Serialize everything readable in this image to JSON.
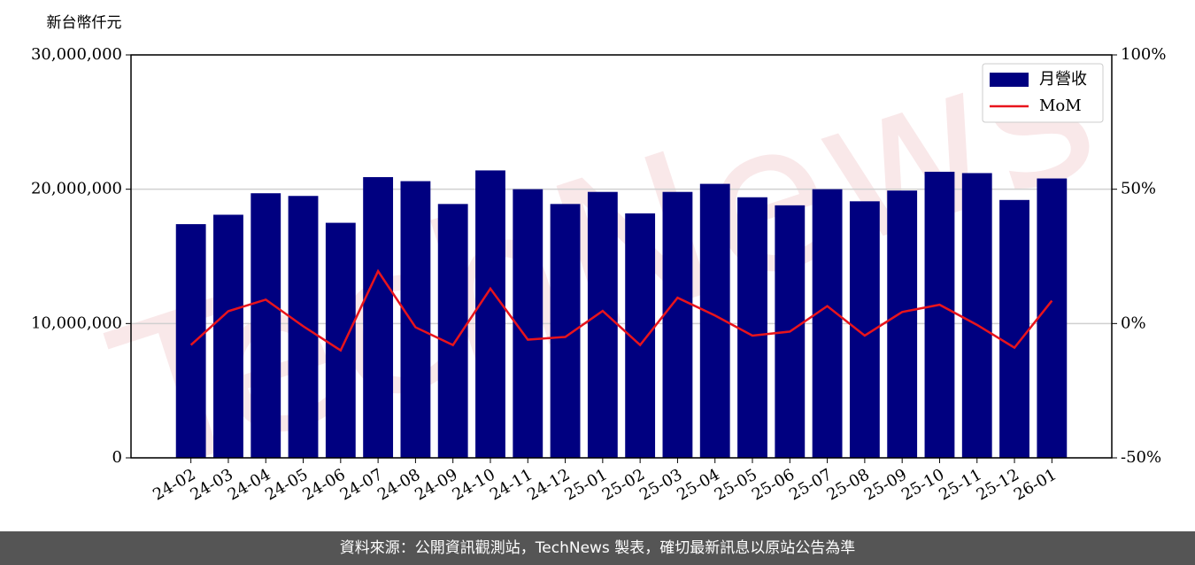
{
  "chart_data": {
    "type": "bar",
    "y_label": "新台幣仟元",
    "watermark": "TechNews",
    "categories": [
      "24-02",
      "24-03",
      "24-04",
      "24-05",
      "24-06",
      "24-07",
      "24-08",
      "24-09",
      "24-10",
      "24-11",
      "24-12",
      "25-01",
      "25-02",
      "25-03",
      "25-04",
      "25-05",
      "25-06",
      "25-07",
      "25-08",
      "25-09",
      "25-10",
      "25-11",
      "25-12",
      "26-01"
    ],
    "series": [
      {
        "name": "月營收",
        "type": "bar",
        "color": "#000080",
        "values": [
          17400000,
          18100000,
          19700000,
          19500000,
          17500000,
          20900000,
          20600000,
          18900000,
          21400000,
          20000000,
          18900000,
          19800000,
          18200000,
          19800000,
          20400000,
          19400000,
          18800000,
          20000000,
          19100000,
          19900000,
          21300000,
          21200000,
          19200000,
          20800000
        ]
      },
      {
        "name": "MoM",
        "type": "line",
        "axis": "y2",
        "color": "#e8141c",
        "values": [
          -8,
          4.6,
          8.9,
          -1,
          -10,
          19.5,
          -1.4,
          -8,
          13,
          -6,
          -5,
          4.7,
          -8,
          9.6,
          3,
          -4.5,
          -3,
          6.5,
          -4.5,
          4.3,
          7,
          -0.5,
          -9,
          8.5
        ]
      }
    ],
    "ylim": [
      0,
      30000000
    ],
    "yticks": [
      {
        "value": 0,
        "label": "0"
      },
      {
        "value": 10000000,
        "label": "10,000,000"
      },
      {
        "value": 20000000,
        "label": "20,000,000"
      },
      {
        "value": 30000000,
        "label": "30,000,000"
      }
    ],
    "y2lim": [
      -50,
      100
    ],
    "y2ticks": [
      {
        "value": -50,
        "label": "-50%"
      },
      {
        "value": 0,
        "label": "0%"
      },
      {
        "value": 50,
        "label": "50%"
      },
      {
        "value": 100,
        "label": "100%"
      }
    ],
    "grid": true,
    "legend": "upper right"
  },
  "footer": "資料來源：公開資訊觀測站，TechNews 製表，確切最新訊息以原站公告為準"
}
